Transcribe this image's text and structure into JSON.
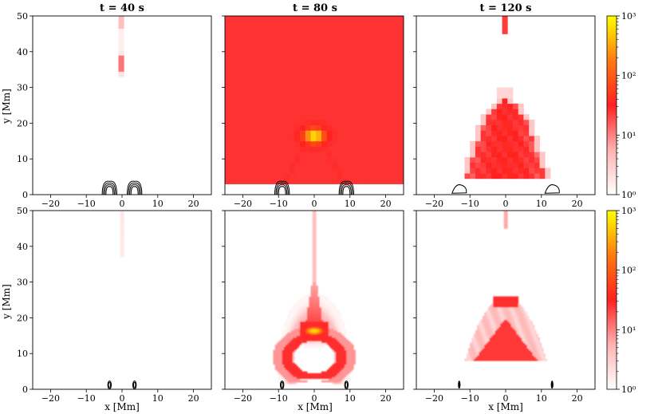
{
  "chart_data": {
    "type": "heatmap",
    "colorbar": {
      "scale": "log",
      "range": [
        1,
        1000
      ],
      "tick_labels": [
        "10⁰",
        "10¹",
        "10²",
        "10³"
      ],
      "colors": [
        "#ffffff",
        "#ff1a1a",
        "#ffff00"
      ]
    },
    "panels": [
      {
        "id": "top-t40",
        "title": "t = 40 s",
        "xlim": [
          -25,
          25
        ],
        "ylim": [
          0,
          50
        ],
        "xticks": [
          "−20",
          "−10",
          "0",
          "10",
          "20"
        ],
        "yticks": [
          "0",
          "10",
          "20",
          "30",
          "40",
          "50"
        ],
        "ylabel": "y [Mm]",
        "xlabel": "",
        "structure": "pixelated",
        "features": [
          "thin vertical column at x≈0 from y≈33 to 50, peak ≈8 at y≈36"
        ],
        "contours": [
          "pair of nested arches at x≈±3.5 Mm, y<3 Mm"
        ]
      },
      {
        "id": "top-t80",
        "title": "t = 80 s",
        "xlim": [
          -25,
          25
        ],
        "ylim": [
          0,
          50
        ],
        "xticks": [
          "−20",
          "−10",
          "0",
          "10",
          "20"
        ],
        "yticks": [],
        "ylabel": "",
        "xlabel": "",
        "structure": "pixelated",
        "features": [
          "bright inverted-V from (0,18) to (±8,3)",
          "column x≈0 up to y=50",
          "peak ≈600 at (0,16)"
        ],
        "contours": [
          "nested arches at x≈±9 Mm, y<3 Mm"
        ]
      },
      {
        "id": "top-t120",
        "title": "t = 120 s",
        "xlim": [
          -25,
          25
        ],
        "ylim": [
          0,
          50
        ],
        "xticks": [
          "−20",
          "−10",
          "0",
          "10",
          "20"
        ],
        "yticks": [],
        "ylabel": "",
        "xlabel": "",
        "structure": "pixelated",
        "features": [
          "dome of red from x=−10 to 10, y=5 to 26",
          "thin column x≈0 y≈47–50"
        ],
        "contours": [
          "single loops at x≈±13 Mm, y<3 Mm"
        ]
      },
      {
        "id": "bottom-t40",
        "title": "",
        "xlim": [
          -25,
          25
        ],
        "ylim": [
          0,
          50
        ],
        "xticks": [
          "−20",
          "−10",
          "0",
          "10",
          "20"
        ],
        "yticks": [
          "0",
          "10",
          "20",
          "30",
          "40",
          "50"
        ],
        "ylabel": "y [Mm]",
        "xlabel": "x [Mm]",
        "structure": "smooth",
        "features": [
          "faint column at x≈0, y≈37–50"
        ],
        "contours": [
          "small ovals at x≈±3.5 Mm, y≈1"
        ]
      },
      {
        "id": "bottom-t80",
        "title": "",
        "xlim": [
          -25,
          25
        ],
        "ylim": [
          0,
          50
        ],
        "xticks": [
          "−20",
          "−10",
          "0",
          "10",
          "20"
        ],
        "yticks": [],
        "ylabel": "",
        "xlabel": "x [Mm]",
        "structure": "smooth",
        "features": [
          "arched fan from (0,27) down to (±9,2)",
          "thin column x≈0 up to y=50",
          "bright core ≈700 at (0,16.5)"
        ],
        "contours": [
          "small ovals at x≈±9 Mm"
        ]
      },
      {
        "id": "bottom-t120",
        "title": "",
        "xlim": [
          -25,
          25
        ],
        "ylim": [
          0,
          50
        ],
        "xticks": [
          "−20",
          "−10",
          "0",
          "10",
          "20"
        ],
        "yticks": [],
        "ylabel": "",
        "xlabel": "x [Mm]",
        "structure": "smooth",
        "features": [
          "bell-shaped structure apex (0,26) base x=±11, y≈8",
          "inner red triangle peak ≈60"
        ],
        "contours": [
          "small dark ovals at x≈±13 Mm"
        ]
      }
    ]
  }
}
